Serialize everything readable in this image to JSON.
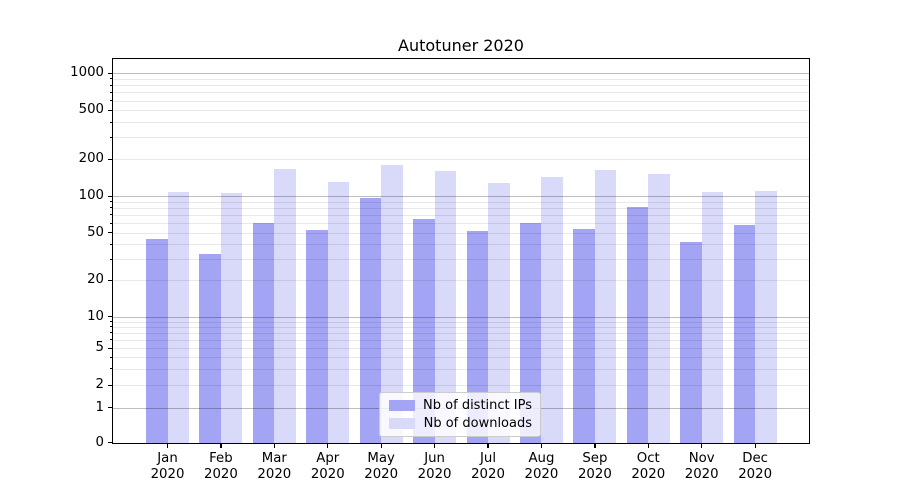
{
  "chart_data": {
    "type": "bar",
    "title": "Autotuner 2020",
    "x_year": "2020",
    "categories": [
      "Jan",
      "Feb",
      "Mar",
      "Apr",
      "May",
      "Jun",
      "Jul",
      "Aug",
      "Sep",
      "Oct",
      "Nov",
      "Dec"
    ],
    "series": [
      {
        "name": "Nb of distinct IPs",
        "color": "#a4a4f5",
        "values": [
          44,
          33,
          60,
          53,
          96,
          65,
          52,
          60,
          54,
          81,
          42,
          58
        ]
      },
      {
        "name": "Nb of downloads",
        "color": "#d9d9f9",
        "values": [
          108,
          106,
          165,
          130,
          180,
          161,
          127,
          144,
          162,
          151,
          107,
          110
        ]
      }
    ],
    "yscale": "symlog",
    "y_ticks": [
      {
        "value": 0,
        "label": "0"
      },
      {
        "value": 1,
        "label": "1"
      },
      {
        "value": 2,
        "label": "2"
      },
      {
        "value": 5,
        "label": "5"
      },
      {
        "value": 10,
        "label": "10"
      },
      {
        "value": 20,
        "label": "20"
      },
      {
        "value": 50,
        "label": "50"
      },
      {
        "value": 100,
        "label": "100"
      },
      {
        "value": 200,
        "label": "200"
      },
      {
        "value": 500,
        "label": "500"
      },
      {
        "value": 1000,
        "label": "1000"
      }
    ],
    "ylim": [
      0,
      1200
    ],
    "grid": "horizontal major and minor, drawn over bars",
    "legend_position": "bottom-center inside plot",
    "legend_items": [
      "Nb of distinct IPs",
      "Nb of downloads"
    ]
  }
}
